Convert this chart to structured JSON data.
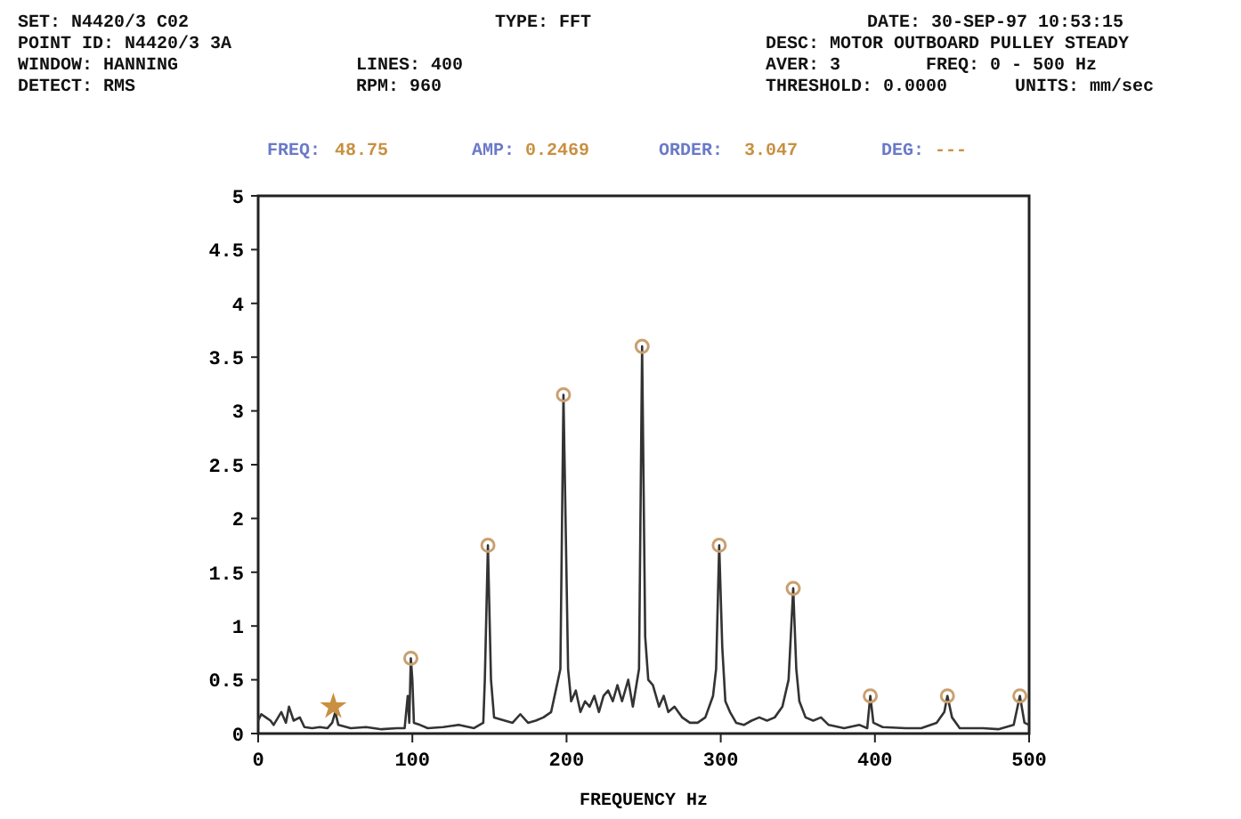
{
  "chart_data": {
    "type": "line",
    "xlabel": "FREQUENCY Hz",
    "annotations": [
      "SET: N4420/3 C02",
      "TYPE: FFT",
      "DATE: 30-SEP-97 10:53:15",
      "POINT ID: N4420/3  3A",
      "DESC: MOTOR OUTBOARD PULLEY STEADY",
      "WINDOW: HANNING",
      "LINES: 400",
      "AVER: 3",
      "FREQ: 0 - 500 Hz",
      "DETECT: RMS",
      "RPM: 960",
      "THRESHOLD: 0.0000",
      "UNITS: mm/sec",
      "FREQ:",
      "48.75",
      "AMP:",
      "0.2469",
      "ORDER:",
      "3.047",
      "DEG:",
      "---"
    ],
    "xlim": [
      0,
      500
    ],
    "xticks": [
      0,
      100,
      200,
      300,
      400,
      500
    ],
    "ylim": [
      0,
      5
    ],
    "yticks": [
      0,
      0.5,
      1,
      1.5,
      2,
      2.5,
      3,
      3.5,
      4,
      4.5,
      5
    ],
    "grid": false,
    "marker": "none",
    "line_style": "solid",
    "series": [
      {
        "color": "#333333",
        "x": [
          0,
          2,
          5,
          8,
          10,
          15,
          18,
          20,
          23,
          27,
          30,
          35,
          40,
          45,
          48,
          50,
          52,
          60,
          70,
          80,
          90,
          95,
          97,
          98,
          99,
          100,
          101,
          105,
          110,
          120,
          130,
          140,
          146,
          147,
          149,
          151,
          153,
          160,
          165,
          170,
          175,
          180,
          185,
          190,
          196,
          198,
          201,
          203,
          206,
          209,
          212,
          215,
          218,
          221,
          224,
          227,
          230,
          233,
          236,
          240,
          243,
          247,
          249,
          251,
          253,
          256,
          260,
          263,
          266,
          270,
          275,
          280,
          285,
          290,
          295,
          297,
          299,
          301,
          303,
          306,
          310,
          315,
          320,
          325,
          330,
          335,
          340,
          344,
          347,
          349,
          351,
          355,
          360,
          365,
          370,
          380,
          390,
          395,
          397,
          399,
          405,
          420,
          430,
          440,
          445,
          447,
          450,
          455,
          470,
          480,
          490,
          494,
          497,
          500
        ],
        "values": [
          0.12,
          0.18,
          0.15,
          0.12,
          0.08,
          0.2,
          0.1,
          0.25,
          0.12,
          0.15,
          0.06,
          0.05,
          0.06,
          0.05,
          0.1,
          0.2,
          0.08,
          0.05,
          0.06,
          0.04,
          0.05,
          0.05,
          0.35,
          0.1,
          0.7,
          0.5,
          0.1,
          0.08,
          0.05,
          0.06,
          0.08,
          0.05,
          0.1,
          0.5,
          1.75,
          0.5,
          0.15,
          0.12,
          0.1,
          0.18,
          0.1,
          0.12,
          0.15,
          0.2,
          0.6,
          3.15,
          0.6,
          0.3,
          0.4,
          0.2,
          0.3,
          0.25,
          0.35,
          0.2,
          0.35,
          0.4,
          0.3,
          0.45,
          0.3,
          0.5,
          0.25,
          0.6,
          3.6,
          0.9,
          0.5,
          0.45,
          0.25,
          0.35,
          0.2,
          0.25,
          0.15,
          0.1,
          0.1,
          0.15,
          0.35,
          0.6,
          1.75,
          0.8,
          0.3,
          0.2,
          0.1,
          0.08,
          0.12,
          0.15,
          0.12,
          0.15,
          0.25,
          0.5,
          1.35,
          0.6,
          0.3,
          0.15,
          0.12,
          0.15,
          0.08,
          0.05,
          0.08,
          0.05,
          0.35,
          0.1,
          0.06,
          0.05,
          0.05,
          0.1,
          0.2,
          0.35,
          0.15,
          0.05,
          0.05,
          0.04,
          0.08,
          0.35,
          0.1,
          0.08
        ]
      },
      {
        "type": "scatter",
        "color": "#c8a070",
        "marker": "circle",
        "x": [
          99,
          149,
          198,
          249,
          299,
          347,
          397,
          447,
          494
        ],
        "values": [
          0.7,
          1.75,
          3.15,
          3.6,
          1.75,
          1.35,
          0.35,
          0.35,
          0.35
        ]
      },
      {
        "type": "scatter",
        "color": "#c89040",
        "marker": "star",
        "x": [
          48.75
        ],
        "values": [
          0.25
        ]
      }
    ]
  }
}
